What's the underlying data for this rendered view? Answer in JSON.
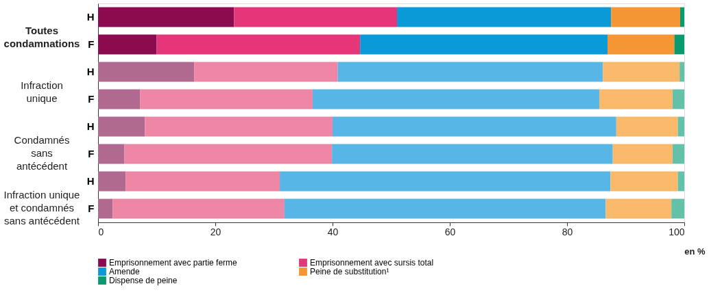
{
  "chart_data": {
    "type": "bar",
    "orientation": "horizontal",
    "stacked": true,
    "xlabel": "en %",
    "categories": [
      "H",
      "F",
      "H",
      "F",
      "H",
      "F",
      "H",
      "F"
    ],
    "annotations": [
      "Toutes\ncondamnations",
      "Infraction\nunique",
      "Condamnés\nsans\nantécédent",
      "Infraction unique\net condamnés\nsans antécédent"
    ],
    "series": [
      {
        "name": "Emprisonnement avec partie ferme",
        "color": "#8b0a50",
        "colors": [
          "#8b0a50",
          "#8b0a50",
          "#b0698f",
          "#b0698f",
          "#b0698f",
          "#b0698f",
          "#b0698f",
          "#b0698f"
        ],
        "values": [
          23.2,
          10.0,
          16.4,
          7.2,
          8.0,
          4.5,
          4.7,
          2.5
        ]
      },
      {
        "name": "Emprisonnement avec sursis total",
        "color": "#e6367a",
        "colors": [
          "#e6367a",
          "#e6367a",
          "#ee87a6",
          "#ee87a6",
          "#ee87a6",
          "#ee87a6",
          "#ee87a6",
          "#ee87a6"
        ],
        "values": [
          27.8,
          34.7,
          24.5,
          29.4,
          32.0,
          35.4,
          26.3,
          29.3
        ]
      },
      {
        "name": "Amende",
        "color": "#0a9ad8",
        "colors": [
          "#0a9ad8",
          "#0a9ad8",
          "#57b6e6",
          "#57b6e6",
          "#57b6e6",
          "#57b6e6",
          "#57b6e6",
          "#57b6e6"
        ],
        "values": [
          36.5,
          42.2,
          45.2,
          48.9,
          48.4,
          47.9,
          56.4,
          54.8
        ]
      },
      {
        "name": "Peine de substitution¹",
        "color": "#f39633",
        "colors": [
          "#f39633",
          "#f39633",
          "#f8ba6a",
          "#f8ba6a",
          "#f8ba6a",
          "#f8ba6a",
          "#f8ba6a",
          "#f8ba6a"
        ],
        "values": [
          11.8,
          11.4,
          13.1,
          12.5,
          10.5,
          10.2,
          11.5,
          11.2
        ]
      },
      {
        "name": "Dispense de peine",
        "color": "#0a9a6e",
        "colors": [
          "#0a9a6e",
          "#0a9a6e",
          "#62c1a8",
          "#62c1a8",
          "#62c1a8",
          "#62c1a8",
          "#62c1a8",
          "#62c1a8"
        ],
        "values": [
          0.7,
          1.7,
          0.8,
          2.0,
          1.1,
          2.0,
          1.1,
          2.2
        ]
      }
    ],
    "xlim": [
      0,
      100
    ],
    "xticks": [
      0,
      20,
      40,
      60,
      80,
      100
    ],
    "grid": false,
    "legend": "bottom"
  }
}
